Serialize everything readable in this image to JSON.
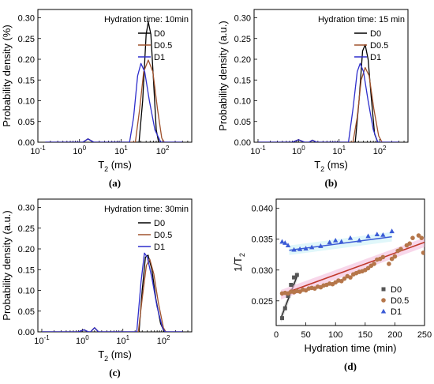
{
  "chart_data": [
    {
      "type": "line",
      "panel_label": "(a)",
      "annotation": "Hydration time: 10min",
      "xlabel": "T",
      "xlabel_sub": "2",
      "xlabel_unit": " (ms)",
      "ylabel": "Probability density (%)",
      "xscale": "log",
      "xlim": [
        0.1,
        500
      ],
      "ylim": [
        0,
        0.32
      ],
      "xticks": [
        0.1,
        1,
        10,
        100
      ],
      "xtick_labels": [
        {
          "b": "10",
          "e": "-1"
        },
        {
          "b": "10",
          "e": "0"
        },
        {
          "b": "10",
          "e": "1"
        },
        {
          "b": "10",
          "e": "2"
        }
      ],
      "yticks": [
        0,
        0.05,
        0.1,
        0.15,
        0.2,
        0.25,
        0.3
      ],
      "ytick_labels": [
        "0.00",
        "0.05",
        "0.10",
        "0.15",
        "0.20",
        "0.25",
        "0.30"
      ],
      "legend": "top-right",
      "series": [
        {
          "name": "D0",
          "color": "#000000",
          "points": [
            [
              0.15,
              0
            ],
            [
              1.2,
              0
            ],
            [
              1.6,
              0.008
            ],
            [
              2.2,
              0
            ],
            [
              27,
              0
            ],
            [
              33,
              0.1
            ],
            [
              40,
              0.26
            ],
            [
              45,
              0.29
            ],
            [
              52,
              0.26
            ],
            [
              60,
              0.15
            ],
            [
              70,
              0.03
            ],
            [
              80,
              0
            ],
            [
              300,
              0
            ]
          ]
        },
        {
          "name": "D0.5",
          "color": "#a0522d",
          "points": [
            [
              0.15,
              0
            ],
            [
              1.2,
              0
            ],
            [
              1.6,
              0.008
            ],
            [
              2.2,
              0
            ],
            [
              22,
              0
            ],
            [
              28,
              0.08
            ],
            [
              35,
              0.17
            ],
            [
              45,
              0.198
            ],
            [
              58,
              0.17
            ],
            [
              75,
              0.08
            ],
            [
              95,
              0.01
            ],
            [
              110,
              0
            ],
            [
              300,
              0
            ]
          ]
        },
        {
          "name": "D1",
          "color": "#2e2ecc",
          "points": [
            [
              0.15,
              0
            ],
            [
              1.2,
              0
            ],
            [
              1.6,
              0.008
            ],
            [
              2.2,
              0
            ],
            [
              16,
              0
            ],
            [
              20,
              0.06
            ],
            [
              25,
              0.16
            ],
            [
              30,
              0.19
            ],
            [
              37,
              0.17
            ],
            [
              48,
              0.1
            ],
            [
              65,
              0.03
            ],
            [
              90,
              0
            ],
            [
              300,
              0
            ]
          ]
        }
      ]
    },
    {
      "type": "line",
      "panel_label": "(b)",
      "annotation": "Hydration time: 15 min",
      "xlabel": "T",
      "xlabel_sub": "2",
      "xlabel_unit": " (ms)",
      "ylabel": "Probability density (a.u.)",
      "xscale": "log",
      "xlim": [
        0.08,
        500
      ],
      "ylim": [
        0,
        0.32
      ],
      "xticks": [
        0.1,
        1,
        10,
        100
      ],
      "xtick_labels": [
        {
          "b": "10",
          "e": "-1"
        },
        {
          "b": "10",
          "e": "0"
        },
        {
          "b": "10",
          "e": "1"
        },
        {
          "b": "10",
          "e": "2"
        }
      ],
      "yticks": [
        0,
        0.05,
        0.1,
        0.15,
        0.2,
        0.25,
        0.3
      ],
      "ytick_labels": [
        "0.00",
        "0.05",
        "0.10",
        "0.15",
        "0.20",
        "0.25",
        "0.30"
      ],
      "legend": "top-right",
      "series": [
        {
          "name": "D0",
          "color": "#000000",
          "points": [
            [
              0.1,
              0
            ],
            [
              0.7,
              0
            ],
            [
              1.0,
              0.006
            ],
            [
              1.4,
              0
            ],
            [
              1.8,
              0
            ],
            [
              2.2,
              0.005
            ],
            [
              2.8,
              0
            ],
            [
              25,
              0
            ],
            [
              31,
              0.1
            ],
            [
              38,
              0.22
            ],
            [
              44,
              0.235
            ],
            [
              52,
              0.2
            ],
            [
              62,
              0.11
            ],
            [
              75,
              0.02
            ],
            [
              90,
              0
            ],
            [
              300,
              0
            ]
          ]
        },
        {
          "name": "D0.5",
          "color": "#a0522d",
          "points": [
            [
              0.1,
              0
            ],
            [
              0.7,
              0
            ],
            [
              1.0,
              0.006
            ],
            [
              1.4,
              0
            ],
            [
              1.8,
              0
            ],
            [
              2.2,
              0.005
            ],
            [
              2.8,
              0
            ],
            [
              22,
              0
            ],
            [
              28,
              0.06
            ],
            [
              35,
              0.15
            ],
            [
              44,
              0.18
            ],
            [
              55,
              0.16
            ],
            [
              72,
              0.08
            ],
            [
              95,
              0.015
            ],
            [
              115,
              0
            ],
            [
              300,
              0
            ]
          ]
        },
        {
          "name": "D1",
          "color": "#2e2ecc",
          "points": [
            [
              0.1,
              0
            ],
            [
              0.7,
              0
            ],
            [
              1.0,
              0.006
            ],
            [
              1.4,
              0
            ],
            [
              1.8,
              0
            ],
            [
              2.2,
              0.005
            ],
            [
              2.8,
              0
            ],
            [
              17,
              0
            ],
            [
              22,
              0.08
            ],
            [
              28,
              0.17
            ],
            [
              33,
              0.19
            ],
            [
              40,
              0.17
            ],
            [
              52,
              0.1
            ],
            [
              70,
              0.03
            ],
            [
              90,
              0
            ],
            [
              300,
              0
            ]
          ]
        }
      ]
    },
    {
      "type": "line",
      "panel_label": "(c)",
      "annotation": "Hydration time: 30min",
      "xlabel": "T",
      "xlabel_sub": "2",
      "xlabel_unit": " (ms)",
      "ylabel": "Probability density (a.u.)",
      "xscale": "log",
      "xlim": [
        0.08,
        500
      ],
      "ylim": [
        0,
        0.32
      ],
      "xticks": [
        0.1,
        1,
        10,
        100
      ],
      "xtick_labels": [
        {
          "b": "10",
          "e": "-1"
        },
        {
          "b": "10",
          "e": "0"
        },
        {
          "b": "10",
          "e": "1"
        },
        {
          "b": "10",
          "e": "2"
        }
      ],
      "yticks": [
        0,
        0.05,
        0.1,
        0.15,
        0.2,
        0.25,
        0.3
      ],
      "ytick_labels": [
        "0.00",
        "0.05",
        "0.10",
        "0.15",
        "0.20",
        "0.25",
        "0.30"
      ],
      "legend": "top-right",
      "series": [
        {
          "name": "D0",
          "color": "#000000",
          "points": [
            [
              0.1,
              0
            ],
            [
              0.8,
              0
            ],
            [
              1.1,
              0.005
            ],
            [
              1.4,
              0
            ],
            [
              1.6,
              0
            ],
            [
              2.0,
              0.01
            ],
            [
              2.5,
              0
            ],
            [
              25,
              0
            ],
            [
              30,
              0.1
            ],
            [
              36,
              0.18
            ],
            [
              42,
              0.185
            ],
            [
              52,
              0.15
            ],
            [
              65,
              0.08
            ],
            [
              85,
              0.02
            ],
            [
              105,
              0
            ],
            [
              300,
              0
            ]
          ]
        },
        {
          "name": "D0.5",
          "color": "#a0522d",
          "points": [
            [
              0.1,
              0
            ],
            [
              0.8,
              0
            ],
            [
              1.1,
              0.005
            ],
            [
              1.4,
              0
            ],
            [
              1.6,
              0
            ],
            [
              2.0,
              0.01
            ],
            [
              2.5,
              0
            ],
            [
              24,
              0
            ],
            [
              30,
              0.08
            ],
            [
              38,
              0.16
            ],
            [
              46,
              0.175
            ],
            [
              58,
              0.14
            ],
            [
              75,
              0.07
            ],
            [
              100,
              0.01
            ],
            [
              115,
              0
            ],
            [
              300,
              0
            ]
          ]
        },
        {
          "name": "D1",
          "color": "#2e2ecc",
          "points": [
            [
              0.1,
              0
            ],
            [
              0.8,
              0
            ],
            [
              1.1,
              0.005
            ],
            [
              1.4,
              0
            ],
            [
              1.6,
              0
            ],
            [
              2.0,
              0.01
            ],
            [
              2.5,
              0
            ],
            [
              22,
              0
            ],
            [
              28,
              0.12
            ],
            [
              34,
              0.19
            ],
            [
              40,
              0.18
            ],
            [
              52,
              0.13
            ],
            [
              70,
              0.06
            ],
            [
              95,
              0.01
            ],
            [
              110,
              0
            ],
            [
              300,
              0
            ]
          ]
        }
      ]
    },
    {
      "type": "scatter",
      "panel_label": "(d)",
      "xlabel": "Hydration time (min)",
      "ylabel": "1/T",
      "ylabel_sub": "2",
      "xlim": [
        0,
        250
      ],
      "ylim": [
        0.021,
        0.0415
      ],
      "xticks": [
        0,
        50,
        100,
        150,
        200,
        250
      ],
      "xtick_labels": [
        "0",
        "50",
        "100",
        "150",
        "200",
        "250"
      ],
      "yticks": [
        0.025,
        0.03,
        0.035,
        0.04
      ],
      "ytick_labels": [
        "0.025",
        "0.030",
        "0.035",
        "0.040"
      ],
      "legend": "bottom-right",
      "series": [
        {
          "name": "D0",
          "color": "#555555",
          "marker": "square",
          "points": [
            [
              10,
              0.0222
            ],
            [
              15,
              0.0238
            ],
            [
              20,
              0.0258
            ],
            [
              25,
              0.0276
            ],
            [
              30,
              0.0288
            ],
            [
              35,
              0.0292
            ]
          ],
          "fit": [
            [
              8,
              0.0222
            ],
            [
              36,
              0.0292
            ]
          ]
        },
        {
          "name": "D0.5",
          "color": "#b5764a",
          "marker": "circle",
          "points": [
            [
              10,
              0.0262
            ],
            [
              15,
              0.0263
            ],
            [
              20,
              0.0262
            ],
            [
              25,
              0.0265
            ],
            [
              30,
              0.0264
            ],
            [
              35,
              0.0266
            ],
            [
              40,
              0.0265
            ],
            [
              45,
              0.0268
            ],
            [
              50,
              0.0267
            ],
            [
              55,
              0.027
            ],
            [
              60,
              0.0271
            ],
            [
              65,
              0.027
            ],
            [
              70,
              0.0273
            ],
            [
              75,
              0.0272
            ],
            [
              80,
              0.0275
            ],
            [
              85,
              0.0276
            ],
            [
              90,
              0.0278
            ],
            [
              95,
              0.0277
            ],
            [
              100,
              0.028
            ],
            [
              105,
              0.0283
            ],
            [
              110,
              0.0282
            ],
            [
              115,
              0.0286
            ],
            [
              120,
              0.029
            ],
            [
              125,
              0.0288
            ],
            [
              130,
              0.0293
            ],
            [
              135,
              0.0295
            ],
            [
              140,
              0.0297
            ],
            [
              145,
              0.0298
            ],
            [
              150,
              0.03
            ],
            [
              155,
              0.0303
            ],
            [
              160,
              0.0307
            ],
            [
              165,
              0.031
            ],
            [
              170,
              0.0317
            ],
            [
              175,
              0.0318
            ],
            [
              180,
              0.0321
            ],
            [
              190,
              0.031
            ],
            [
              195,
              0.0318
            ],
            [
              200,
              0.0322
            ],
            [
              205,
              0.0331
            ],
            [
              210,
              0.0334
            ],
            [
              220,
              0.034
            ],
            [
              225,
              0.0343
            ],
            [
              230,
              0.0352
            ],
            [
              240,
              0.0356
            ],
            [
              245,
              0.0352
            ],
            [
              248,
              0.0328
            ]
          ],
          "fit": [
            [
              8,
              0.026
            ],
            [
              250,
              0.0345
            ]
          ]
        },
        {
          "name": "D1",
          "color": "#3b5bd6",
          "marker": "triangle",
          "points": [
            [
              10,
              0.0346
            ],
            [
              15,
              0.0344
            ],
            [
              20,
              0.034
            ],
            [
              30,
              0.0333
            ],
            [
              40,
              0.0334
            ],
            [
              50,
              0.0335
            ],
            [
              60,
              0.0337
            ],
            [
              75,
              0.0339
            ],
            [
              90,
              0.0345
            ],
            [
              100,
              0.0348
            ],
            [
              110,
              0.0346
            ],
            [
              125,
              0.0352
            ],
            [
              140,
              0.0348
            ],
            [
              155,
              0.0355
            ],
            [
              170,
              0.0358
            ],
            [
              180,
              0.0357
            ],
            [
              195,
              0.0363
            ]
          ],
          "fit": [
            [
              22,
              0.0332
            ],
            [
              195,
              0.0354
            ]
          ]
        }
      ]
    }
  ]
}
